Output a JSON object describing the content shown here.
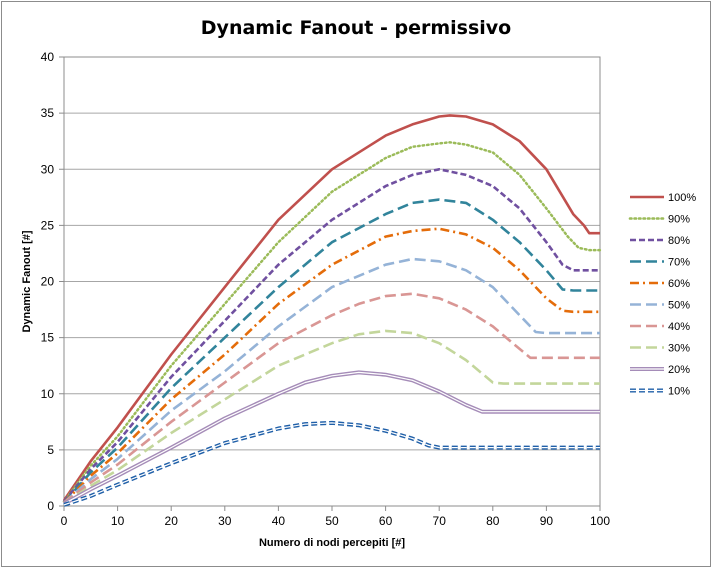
{
  "chart_data": {
    "type": "line",
    "title": "Dynamic Fanout  - permissivo",
    "xlabel": "Numero di nodi percepiti [#]",
    "ylabel": "Dynamic Fanout [#]",
    "xlim": [
      0,
      100
    ],
    "ylim": [
      0,
      40
    ],
    "xticks": [
      0,
      10,
      20,
      30,
      40,
      50,
      60,
      70,
      80,
      90,
      100
    ],
    "yticks": [
      0,
      5,
      10,
      15,
      20,
      25,
      30,
      35,
      40
    ],
    "grid": "horizontal",
    "legend_position": "right",
    "series": [
      {
        "name": "100%",
        "color": "#c0504d",
        "dash": "solid",
        "double": false,
        "x": [
          0,
          5,
          10,
          20,
          30,
          40,
          50,
          60,
          65,
          70,
          72,
          75,
          80,
          85,
          90,
          95,
          97,
          98,
          100
        ],
        "y": [
          0.5,
          4,
          7,
          13.5,
          19.5,
          25.5,
          30,
          33,
          34,
          34.7,
          34.8,
          34.7,
          34,
          32.5,
          30,
          26,
          25,
          24.3,
          24.3
        ]
      },
      {
        "name": "90%",
        "color": "#9bbb59",
        "dash": "dot",
        "double": false,
        "x": [
          0,
          5,
          10,
          20,
          30,
          40,
          50,
          60,
          65,
          70,
          72,
          75,
          80,
          85,
          90,
          94,
          96,
          98,
          100
        ],
        "y": [
          0.4,
          3.6,
          6.2,
          12.5,
          18,
          23.5,
          28,
          31,
          32,
          32.3,
          32.4,
          32.2,
          31.5,
          29.5,
          26.5,
          24,
          23,
          22.8,
          22.8
        ]
      },
      {
        "name": "80%",
        "color": "#7050a0",
        "dash": "dash",
        "double": false,
        "x": [
          0,
          5,
          10,
          20,
          30,
          40,
          50,
          60,
          65,
          70,
          75,
          80,
          85,
          90,
          93,
          95,
          97,
          100
        ],
        "y": [
          0.4,
          3.3,
          5.7,
          11.5,
          16.5,
          21.5,
          25.5,
          28.5,
          29.5,
          30,
          29.5,
          28.5,
          26.5,
          23.5,
          21.5,
          21,
          21,
          21
        ]
      },
      {
        "name": "70%",
        "color": "#31849b",
        "dash": "longdash",
        "double": false,
        "x": [
          0,
          5,
          10,
          20,
          30,
          40,
          50,
          60,
          65,
          70,
          75,
          80,
          85,
          90,
          93,
          95,
          100
        ],
        "y": [
          0.3,
          3,
          5.2,
          10.5,
          15,
          19.5,
          23.5,
          26,
          27,
          27.3,
          27,
          25.5,
          23.5,
          21,
          19.3,
          19.2,
          19.2
        ]
      },
      {
        "name": "60%",
        "color": "#e46c0a",
        "dash": "dashdot",
        "double": false,
        "x": [
          0,
          5,
          10,
          20,
          30,
          40,
          50,
          60,
          65,
          70,
          75,
          80,
          85,
          90,
          93,
          95,
          100
        ],
        "y": [
          0.3,
          2.7,
          4.7,
          9.5,
          13.5,
          18,
          21.5,
          24,
          24.5,
          24.7,
          24.2,
          23,
          21,
          18.5,
          17.4,
          17.3,
          17.3
        ]
      },
      {
        "name": "50%",
        "color": "#95b3d7",
        "dash": "longdash",
        "double": false,
        "x": [
          0,
          5,
          10,
          20,
          30,
          40,
          50,
          60,
          65,
          70,
          75,
          80,
          85,
          88,
          90,
          100
        ],
        "y": [
          0.3,
          2.4,
          4.2,
          8.5,
          12,
          16,
          19.5,
          21.5,
          22,
          21.8,
          21,
          19.5,
          17,
          15.5,
          15.4,
          15.4
        ]
      },
      {
        "name": "40%",
        "color": "#d99694",
        "dash": "longdash",
        "double": false,
        "x": [
          0,
          5,
          10,
          20,
          30,
          40,
          50,
          55,
          60,
          65,
          70,
          75,
          80,
          85,
          87,
          90,
          100
        ],
        "y": [
          0.3,
          2.1,
          3.7,
          7.5,
          11,
          14.5,
          17,
          18,
          18.7,
          18.9,
          18.5,
          17.5,
          16,
          14,
          13.2,
          13.2,
          13.2
        ]
      },
      {
        "name": "30%",
        "color": "#c3d69b",
        "dash": "longdash",
        "double": false,
        "x": [
          0,
          5,
          10,
          20,
          30,
          40,
          50,
          55,
          60,
          65,
          70,
          75,
          78,
          80,
          82,
          100
        ],
        "y": [
          0.2,
          1.8,
          3.2,
          6.5,
          9.5,
          12.5,
          14.5,
          15.3,
          15.6,
          15.4,
          14.5,
          13,
          11.8,
          11,
          10.9,
          10.9
        ]
      },
      {
        "name": "20%",
        "color": "#a58cb8",
        "dash": "solid",
        "double": true,
        "x": [
          0,
          5,
          10,
          20,
          30,
          40,
          45,
          50,
          55,
          60,
          65,
          70,
          75,
          78,
          80,
          100
        ],
        "y": [
          0.2,
          1.5,
          2.7,
          5.2,
          7.8,
          10,
          11,
          11.6,
          11.9,
          11.7,
          11.2,
          10.2,
          9,
          8.4,
          8.4,
          8.4
        ]
      },
      {
        "name": "10%",
        "color": "#1f5fa8",
        "dash": "dash",
        "double": true,
        "x": [
          0,
          5,
          10,
          20,
          30,
          40,
          45,
          50,
          55,
          60,
          65,
          68,
          70,
          100
        ],
        "y": [
          0.1,
          0.9,
          1.9,
          3.8,
          5.6,
          6.9,
          7.3,
          7.4,
          7.2,
          6.7,
          6,
          5.4,
          5.2,
          5.2
        ]
      }
    ]
  }
}
